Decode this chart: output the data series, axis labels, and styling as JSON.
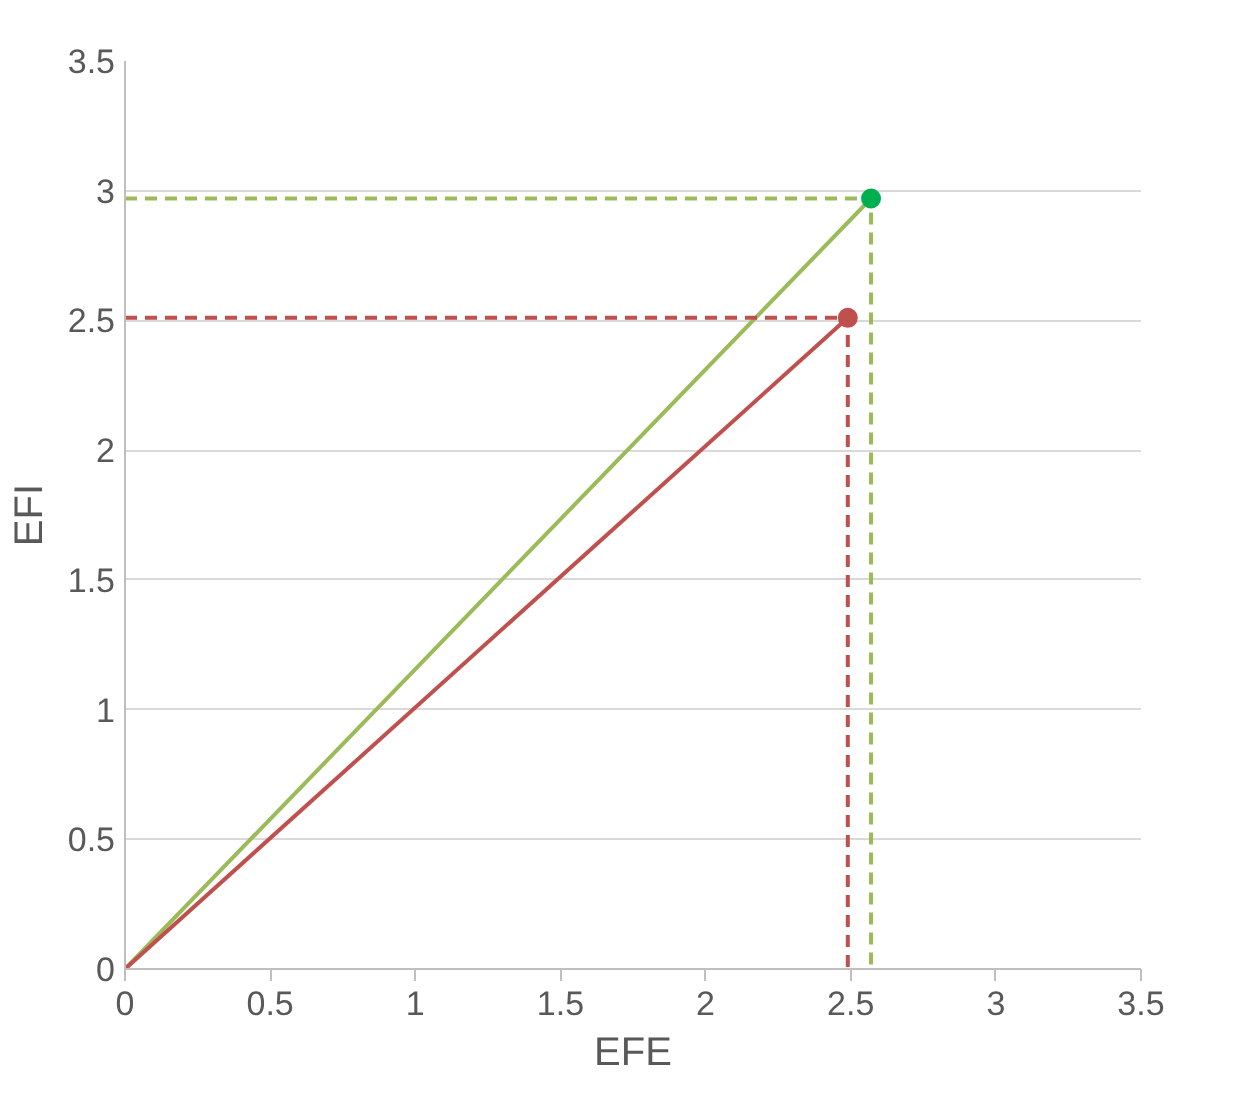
{
  "chart_data": {
    "type": "line",
    "xlabel": "EFE",
    "ylabel": "EFI",
    "xlim": [
      0,
      3.5
    ],
    "ylim": [
      0,
      3.5
    ],
    "xticks": [
      0,
      0.5,
      1,
      1.5,
      2,
      2.5,
      3,
      3.5
    ],
    "yticks": [
      0,
      0.5,
      1,
      1.5,
      2,
      2.5,
      3,
      3.5
    ],
    "grid": "y",
    "line_style": "solid",
    "series": [
      {
        "color": "#9bbb59",
        "x": [
          0,
          2.57
        ],
        "values": [
          0,
          2.97
        ]
      },
      {
        "color": "#c0504d",
        "x": [
          0,
          2.49
        ],
        "values": [
          0,
          2.51
        ]
      },
      {
        "line_style": "dashed",
        "color": "#9bbb59",
        "x": [
          0,
          2.57,
          2.57
        ],
        "values": [
          2.97,
          2.97,
          0
        ]
      },
      {
        "line_style": "dashed",
        "color": "#c0504d",
        "x": [
          0,
          2.49,
          2.49
        ],
        "values": [
          2.51,
          2.51,
          0
        ]
      },
      {
        "type": "scatter",
        "marker": "circle",
        "color": "#00b050",
        "x": [
          2.57
        ],
        "values": [
          2.97
        ]
      },
      {
        "type": "scatter",
        "marker": "circle",
        "color": "#c0504d",
        "x": [
          2.49
        ],
        "values": [
          2.51
        ]
      }
    ]
  }
}
